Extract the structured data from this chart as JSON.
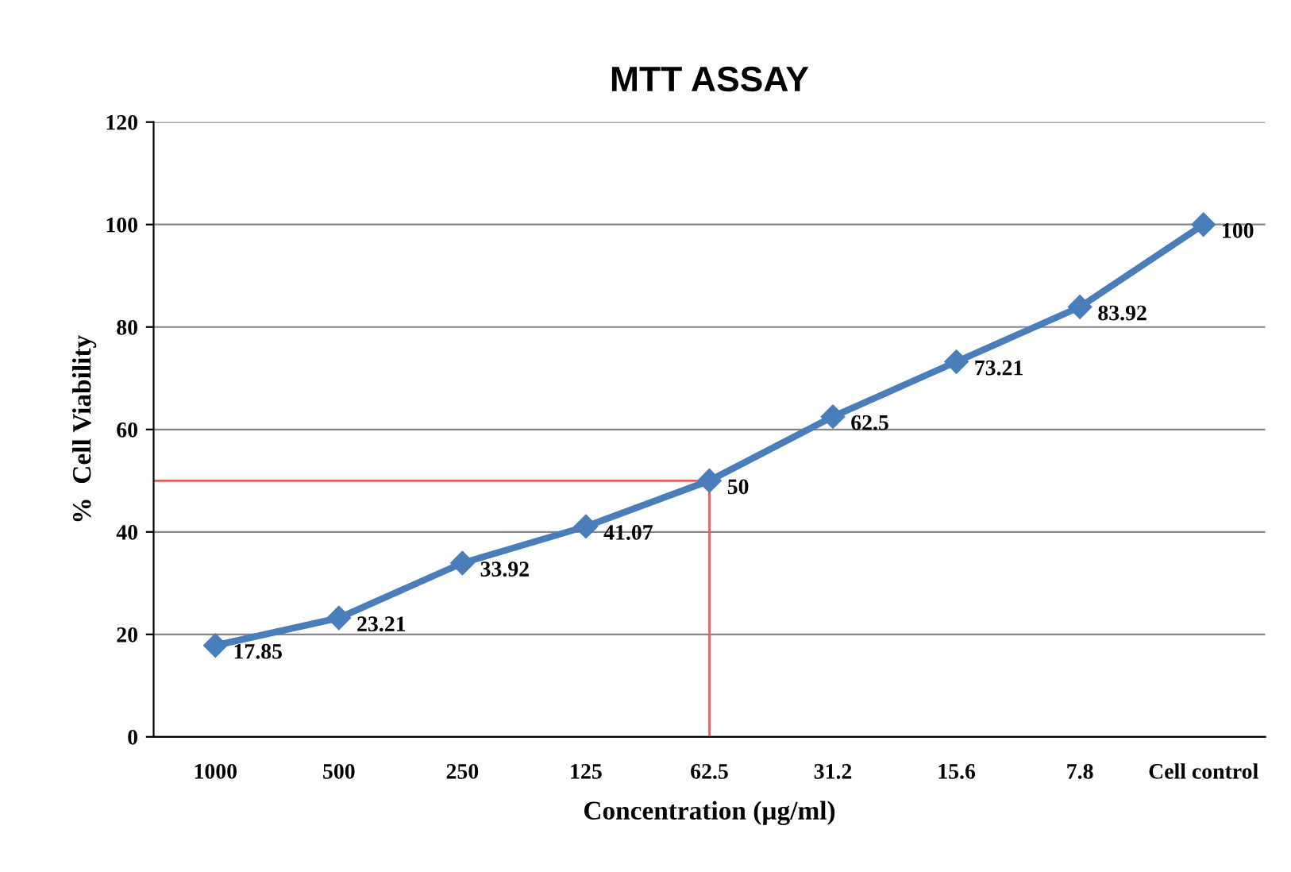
{
  "chart_data": {
    "type": "line",
    "title": "MTT ASSAY",
    "xlabel": "Concentration (µg/ml)",
    "ylabel": "%  Cell Viability",
    "categories": [
      "1000",
      "500",
      "250",
      "125",
      "62.5",
      "31.2",
      "15.6",
      "7.8",
      "Cell control"
    ],
    "series": [
      {
        "color": "#4a7ebb",
        "values": [
          17.85,
          23.21,
          33.92,
          41.07,
          50,
          62.5,
          73.21,
          83.92,
          100
        ]
      }
    ],
    "ylim": [
      0,
      120
    ],
    "yticks": [
      0,
      20,
      40,
      60,
      80,
      100,
      120
    ],
    "grid": "y",
    "marker": "diamond",
    "line_style": "solid",
    "data_labels": true,
    "legend": false,
    "ref_lines": [
      {
        "axis": "y",
        "value": 50,
        "label": null,
        "color": "#e06060"
      },
      {
        "axis": "x",
        "value": "62.5",
        "label": null,
        "color": "#e06060"
      }
    ]
  }
}
